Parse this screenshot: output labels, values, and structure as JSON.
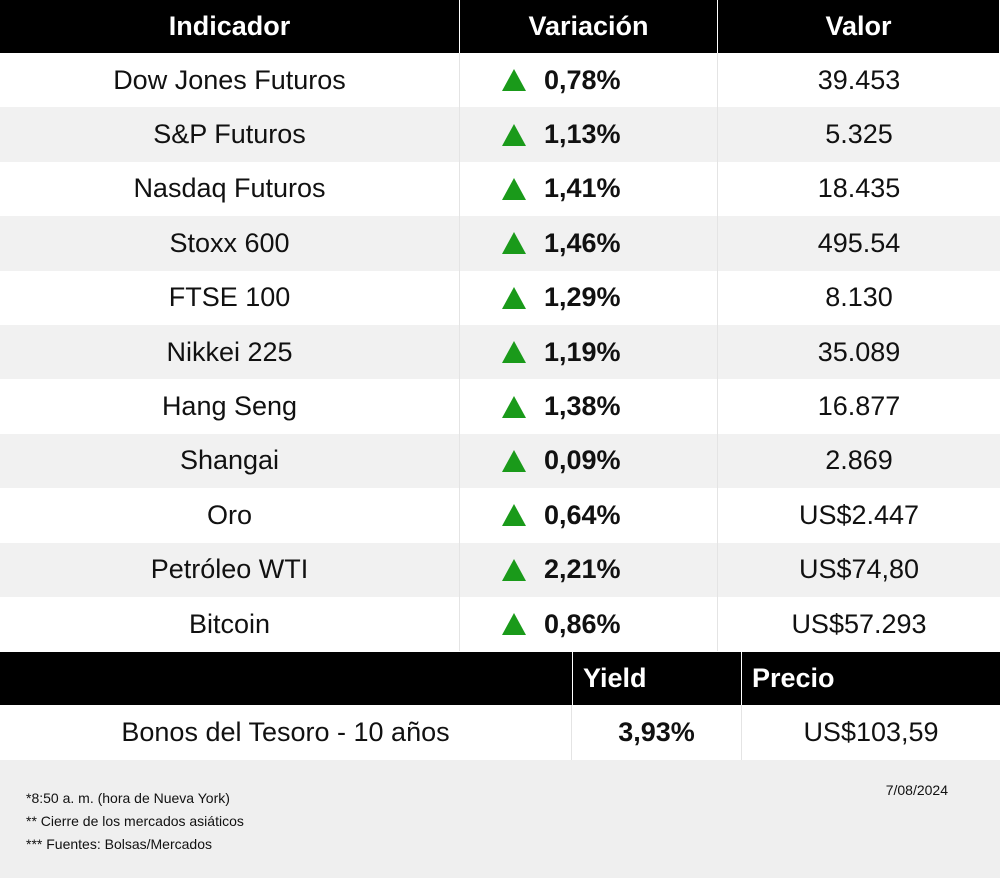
{
  "table": {
    "header": [
      "Indicador",
      "Variación",
      "Valor"
    ],
    "rows": [
      [
        "Dow Jones Futuros",
        "0,78%",
        "39.453"
      ],
      [
        "S&P Futuros",
        "1,13%",
        "5.325"
      ],
      [
        "Nasdaq Futuros",
        "1,41%",
        "18.435"
      ],
      [
        "Stoxx 600",
        "1,46%",
        "495.54"
      ],
      [
        "FTSE 100",
        "1,29%",
        "8.130"
      ],
      [
        "Nikkei 225",
        "1,19%",
        "35.089"
      ],
      [
        "Hang Seng",
        "1,38%",
        "16.877"
      ],
      [
        "Shangai",
        "0,09%",
        "2.869"
      ],
      [
        "Oro",
        "0,64%",
        "US$2.447"
      ],
      [
        "Petróleo WTI",
        "2,21%",
        "US$74,80"
      ],
      [
        "Bitcoin",
        "0,86%",
        "US$57.293"
      ]
    ]
  },
  "bonds": {
    "header": [
      "Yield",
      "Precio"
    ],
    "rows": [
      [
        "Bonos del Tesoro - 10 años",
        "3,93%",
        "US$103,59"
      ]
    ]
  },
  "footer": {
    "notes": [
      "*8:50 a. m. (hora de Nueva York)",
      "** Cierre de los mercados asiáticos",
      "*** Fuentes: Bolsas/Mercados"
    ],
    "date": "7/08/2024"
  }
}
